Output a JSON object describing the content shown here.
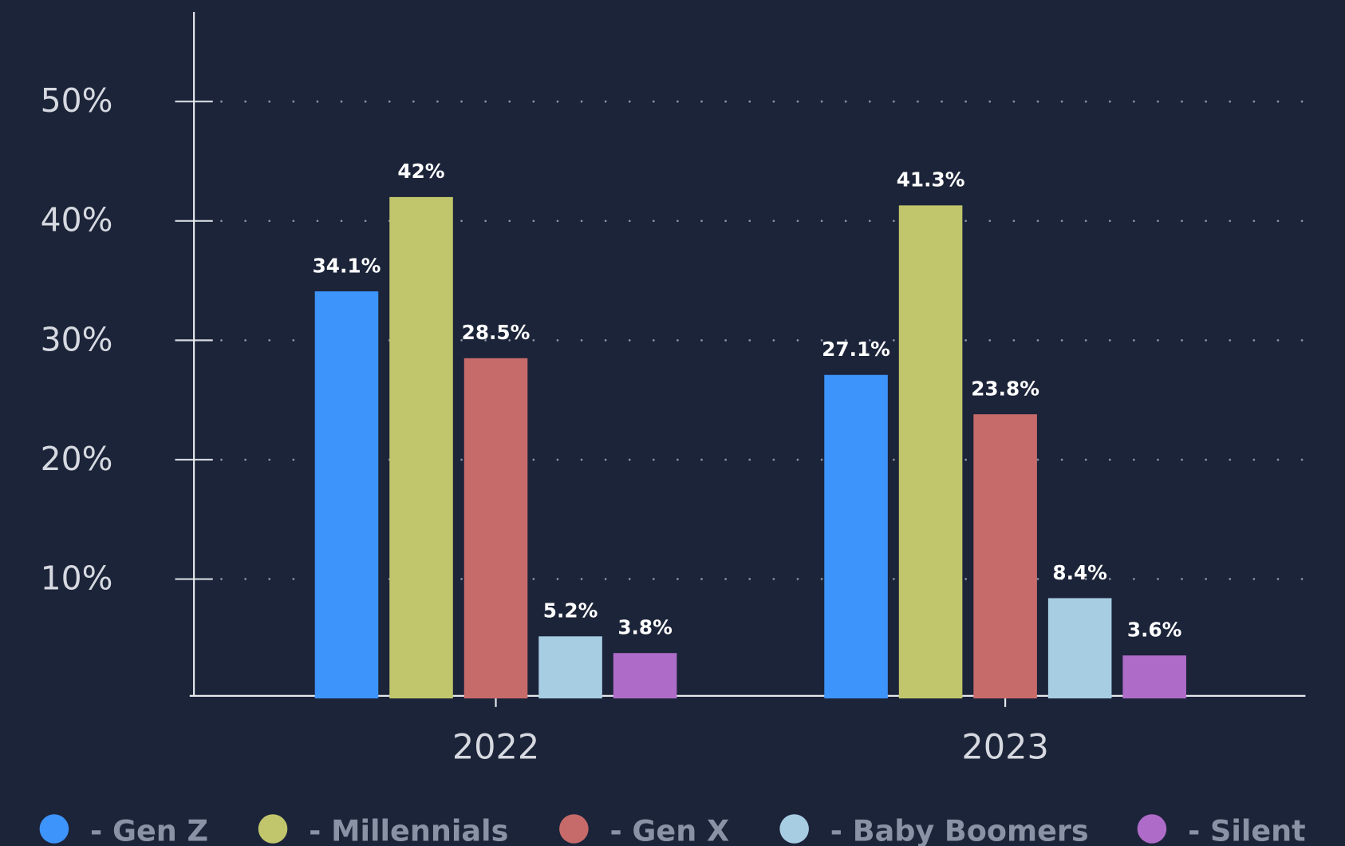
{
  "chart_data": {
    "type": "bar",
    "categories": [
      "2022",
      "2023"
    ],
    "series": [
      {
        "name": "Gen Z",
        "color": "#3d94fb",
        "values": [
          34.1,
          27.1
        ],
        "value_labels": [
          "34.1%",
          "27.1%"
        ]
      },
      {
        "name": "Millennials",
        "color": "#c1c66c",
        "values": [
          42,
          41.3
        ],
        "value_labels": [
          "42%",
          "41.3%"
        ]
      },
      {
        "name": "Gen X",
        "color": "#c76b6a",
        "values": [
          28.5,
          23.8
        ],
        "value_labels": [
          "28.5%",
          "23.8%"
        ]
      },
      {
        "name": "Baby Boomers",
        "color": "#a7cde3",
        "values": [
          5.2,
          8.4
        ],
        "value_labels": [
          "5.2%",
          "8.4%"
        ]
      },
      {
        "name": "Silent",
        "color": "#ae6cc8",
        "values": [
          3.8,
          3.6
        ],
        "value_labels": [
          "3.8%",
          "3.6%"
        ]
      }
    ],
    "ylim": [
      0,
      57.5
    ],
    "yticks": [
      {
        "value": 10,
        "label": "10%"
      },
      {
        "value": 20,
        "label": "20%"
      },
      {
        "value": 30,
        "label": "30%"
      },
      {
        "value": 40,
        "label": "40%"
      },
      {
        "value": 50,
        "label": "50%"
      }
    ],
    "grid": true,
    "legend": "bottom"
  }
}
